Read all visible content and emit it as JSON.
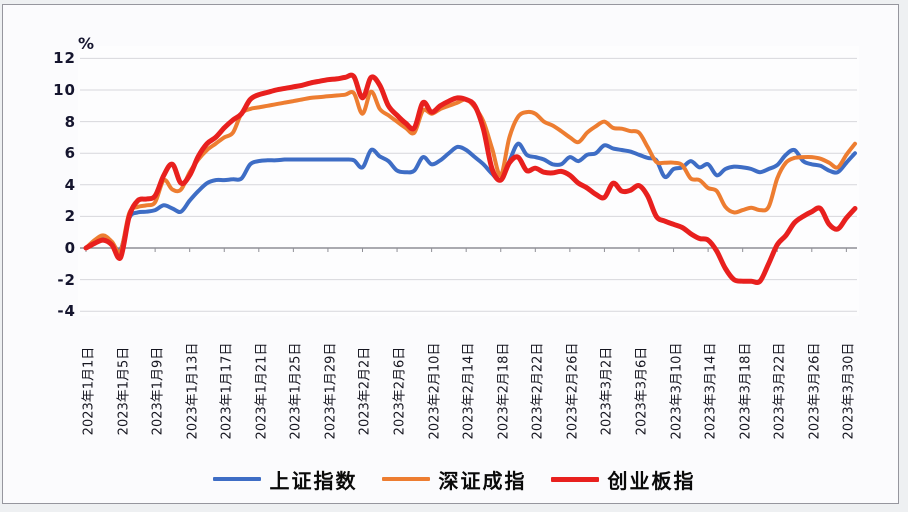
{
  "chart_data": {
    "type": "line",
    "title": "",
    "unit_label": "%",
    "grid": true,
    "legend_position": "bottom",
    "ylim": [
      -4,
      12
    ],
    "y_ticks": [
      12,
      10,
      8,
      6,
      4,
      2,
      0,
      -2,
      -4
    ],
    "x_tick_days": [
      0,
      4,
      8,
      12,
      16,
      20,
      24,
      28,
      32,
      36,
      40,
      44,
      48,
      52,
      56,
      60,
      64,
      68,
      72,
      76,
      80,
      84,
      88
    ],
    "x_tick_labels": [
      "2023年1月1日",
      "2023年1月5日",
      "2023年1月9日",
      "2023年1月13日",
      "2023年1月17日",
      "2023年1月21日",
      "2023年1月25日",
      "2023年1月29日",
      "2023年2月2日",
      "2023年2月6日",
      "2023年2月10日",
      "2023年2月14日",
      "2023年2月18日",
      "2023年2月22日",
      "2023年2月26日",
      "2023年3月2日",
      "2023年3月6日",
      "2023年3月10日",
      "2023年3月14日",
      "2023年3月18日",
      "2023年3月22日",
      "2023年3月26日",
      "2023年3月30日"
    ],
    "x_range_days": 89,
    "series": [
      {
        "name": "上证指数",
        "color": "#3E6DC5",
        "values": [
          0,
          0.3,
          0.6,
          0.3,
          -0.1,
          1.9,
          2.25,
          2.3,
          2.4,
          2.7,
          2.5,
          2.3,
          3,
          3.6,
          4.1,
          4.3,
          4.3,
          4.35,
          4.4,
          5.3,
          5.5,
          5.55,
          5.55,
          5.6,
          5.6,
          5.6,
          5.6,
          5.6,
          5.6,
          5.6,
          5.6,
          5.55,
          5.1,
          6.2,
          5.8,
          5.5,
          4.9,
          4.8,
          4.9,
          5.75,
          5.3,
          5.55,
          6,
          6.4,
          6.2,
          5.75,
          5.3,
          4.7,
          4.3,
          5.5,
          6.6,
          5.9,
          5.75,
          5.6,
          5.3,
          5.3,
          5.75,
          5.5,
          5.9,
          6,
          6.5,
          6.3,
          6.2,
          6.1,
          5.9,
          5.7,
          5.55,
          4.5,
          5,
          5.1,
          5.5,
          5.1,
          5.3,
          4.6,
          5,
          5.15,
          5.1,
          5,
          4.8,
          5,
          5.25,
          5.9,
          6.2,
          5.5,
          5.3,
          5.2,
          4.9,
          4.8,
          5.4,
          6
        ]
      },
      {
        "name": "深证成指",
        "color": "#ED7D31",
        "values": [
          0,
          0.5,
          0.8,
          0.4,
          -0.2,
          2.2,
          2.6,
          2.7,
          2.9,
          4.3,
          3.7,
          3.7,
          4.8,
          5.6,
          6.2,
          6.6,
          7,
          7.3,
          8.5,
          8.8,
          8.9,
          9,
          9.1,
          9.2,
          9.3,
          9.4,
          9.5,
          9.55,
          9.6,
          9.65,
          9.7,
          9.8,
          8.5,
          9.9,
          8.8,
          8.4,
          8,
          7.6,
          7.3,
          8.7,
          8.5,
          8.8,
          9,
          9.2,
          9.4,
          8.9,
          8,
          6.3,
          4.6,
          7,
          8.3,
          8.6,
          8.5,
          8,
          7.75,
          7.4,
          7,
          6.7,
          7.3,
          7.7,
          8,
          7.6,
          7.55,
          7.4,
          7.3,
          6.4,
          5.45,
          5.4,
          5.4,
          5.25,
          4.4,
          4.3,
          3.8,
          3.6,
          2.6,
          2.25,
          2.4,
          2.55,
          2.4,
          2.6,
          4.4,
          5.4,
          5.7,
          5.75,
          5.75,
          5.65,
          5.4,
          5.1,
          5.9,
          6.6
        ]
      },
      {
        "name": "创业板指",
        "color": "#E8201E",
        "values": [
          0,
          0.3,
          0.5,
          0.2,
          -0.6,
          2,
          3,
          3.1,
          3.3,
          4.6,
          5.3,
          4.1,
          4.6,
          5.8,
          6.6,
          7,
          7.6,
          8.1,
          8.5,
          9.4,
          9.7,
          9.85,
          10,
          10.1,
          10.2,
          10.3,
          10.45,
          10.55,
          10.65,
          10.7,
          10.8,
          10.85,
          9.5,
          10.8,
          10.3,
          9,
          8.4,
          7.9,
          7.6,
          9.2,
          8.6,
          9,
          9.3,
          9.5,
          9.4,
          9,
          7.5,
          5,
          4.3,
          5.4,
          5.75,
          4.9,
          5.05,
          4.8,
          4.75,
          4.85,
          4.6,
          4.1,
          3.8,
          3.4,
          3.2,
          4.1,
          3.6,
          3.65,
          3.95,
          3.3,
          2,
          1.7,
          1.5,
          1.3,
          0.9,
          0.6,
          0.5,
          -0.2,
          -1.3,
          -2,
          -2.1,
          -2.1,
          -2.1,
          -1,
          0.2,
          0.8,
          1.6,
          2,
          2.3,
          2.5,
          1.5,
          1.2,
          1.9,
          2.5
        ]
      }
    ]
  }
}
